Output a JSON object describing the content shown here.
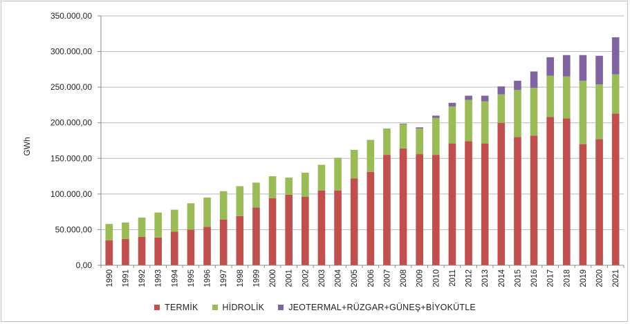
{
  "chart_data": {
    "type": "bar",
    "stacked": true,
    "ylabel": "GWh",
    "ylim": [
      0,
      350000
    ],
    "yticks": [
      "0,00",
      "50.000,00",
      "100.000,00",
      "150.000,00",
      "200.000,00",
      "250.000,00",
      "300.000,00",
      "350.000,00"
    ],
    "grid": true,
    "legend_position": "bottom",
    "categories": [
      "1990",
      "1991",
      "1992",
      "1993",
      "1994",
      "1995",
      "1996",
      "1997",
      "1998",
      "1999",
      "2000",
      "2001",
      "2002",
      "2003",
      "2004",
      "2005",
      "2006",
      "2007",
      "2008",
      "2009",
      "2010",
      "2011",
      "2012",
      "2013",
      "2014",
      "2015",
      "2016",
      "2017",
      "2018",
      "2019",
      "2020",
      "2021"
    ],
    "series": [
      {
        "name": "TERMİK",
        "color": "#c0504d",
        "values": [
          35000,
          37000,
          40000,
          39000,
          47000,
          50000,
          54000,
          64000,
          69000,
          81000,
          94000,
          99000,
          96000,
          105000,
          105000,
          122000,
          131000,
          155000,
          164000,
          156000,
          155000,
          171000,
          174000,
          171000,
          200000,
          180000,
          182000,
          208000,
          206000,
          170000,
          177000,
          213000
        ]
      },
      {
        "name": "HİDROLİK",
        "color": "#9bbb59",
        "values": [
          23000,
          23000,
          27000,
          35000,
          31000,
          37000,
          41000,
          40000,
          42000,
          35000,
          31000,
          24000,
          34000,
          36000,
          46000,
          40000,
          45000,
          37000,
          34000,
          36000,
          52000,
          52000,
          58000,
          59000,
          40000,
          66000,
          67000,
          58000,
          59000,
          89000,
          77000,
          55000
        ]
      },
      {
        "name": "JEOTERMAL+RÜZGAR+GÜNEŞ+BİYOKÜTLE",
        "color": "#8064a2",
        "values": [
          0,
          0,
          0,
          0,
          0,
          0,
          0,
          0,
          0,
          0,
          0,
          0,
          0,
          0,
          0,
          0,
          0,
          0,
          850,
          1600,
          3000,
          5000,
          6000,
          8000,
          11000,
          13000,
          23000,
          26000,
          30000,
          36000,
          40000,
          52000
        ]
      }
    ]
  }
}
